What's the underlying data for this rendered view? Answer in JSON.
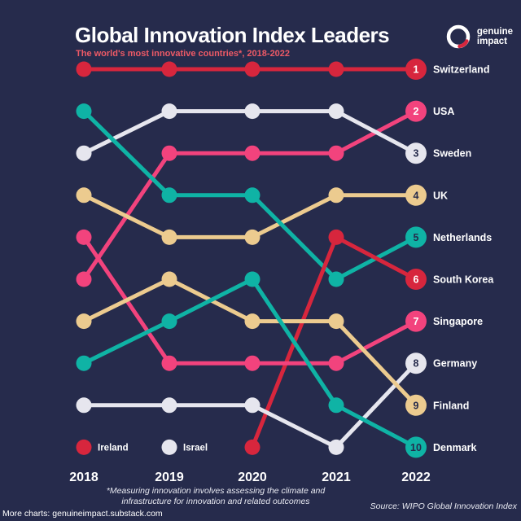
{
  "chart_data": {
    "type": "line",
    "subtype": "bump-rank-chart",
    "title": "Global Innovation Index Leaders",
    "subtitle": "The world's most innovative countries*, 2018-2022",
    "x_labels": [
      "2018",
      "2019",
      "2020",
      "2021",
      "2022"
    ],
    "y_meaning": "rank, 1 = most innovative, top to bottom; final 2022 rank shown in numbered badge",
    "ylim": [
      1,
      10
    ],
    "grid": false,
    "legend_position": "inline at first data point (Ireland 2018, Israel 2019)",
    "series": [
      {
        "name": "Switzerland",
        "color": "#d7263d",
        "badge_text": "#ffffff",
        "ranks": [
          1,
          1,
          1,
          1,
          1
        ]
      },
      {
        "name": "USA",
        "color": "#f2437d",
        "badge_text": "#ffffff",
        "ranks": [
          6,
          3,
          3,
          3,
          2
        ]
      },
      {
        "name": "Sweden",
        "color": "#e6e6ee",
        "badge_text": "#262b4c",
        "ranks": [
          3,
          2,
          2,
          2,
          3
        ]
      },
      {
        "name": "UK",
        "color": "#eccb8f",
        "badge_text": "#262b4c",
        "ranks": [
          4,
          5,
          5,
          4,
          4
        ]
      },
      {
        "name": "Netherlands",
        "color": "#0fb3a5",
        "badge_text": "#262b4c",
        "ranks": [
          2,
          4,
          4,
          6,
          5
        ]
      },
      {
        "name": "South Korea",
        "color": "#d7263d",
        "badge_text": "#ffffff",
        "ranks": [
          null,
          null,
          10,
          5,
          6
        ]
      },
      {
        "name": "Singapore",
        "color": "#f2437d",
        "badge_text": "#ffffff",
        "ranks": [
          5,
          8,
          8,
          8,
          7
        ]
      },
      {
        "name": "Germany",
        "color": "#e6e6ee",
        "badge_text": "#262b4c",
        "ranks": [
          9,
          9,
          9,
          10,
          8
        ]
      },
      {
        "name": "Finland",
        "color": "#eccb8f",
        "badge_text": "#262b4c",
        "ranks": [
          7,
          6,
          7,
          7,
          9
        ]
      },
      {
        "name": "Denmark",
        "color": "#0fb3a5",
        "badge_text": "#262b4c",
        "ranks": [
          8,
          7,
          6,
          9,
          10
        ]
      },
      {
        "name": "Ireland",
        "color": "#d7263d",
        "badge_text": "#ffffff",
        "ranks": [
          10,
          null,
          null,
          null,
          null
        ],
        "label_inline": true
      },
      {
        "name": "Israel",
        "color": "#e6e6ee",
        "badge_text": "#262b4c",
        "ranks": [
          null,
          10,
          null,
          null,
          null
        ],
        "label_inline": true
      }
    ]
  },
  "logo": {
    "line1": "genuine",
    "line2": "impact"
  },
  "footer": {
    "footnote_line1": "*Measuring innovation involves assessing the climate and",
    "footnote_line2": "infrastructure for innovation and related outcomes",
    "more_charts": "More charts: genuineimpact.substack.com",
    "source": "Source: WIPO Global Innovation Index"
  },
  "colors": {
    "background": "#262b4c",
    "subtitle_accent": "#ee5a66",
    "red": "#d7263d",
    "pink": "#f2437d",
    "white_series": "#e6e6ee",
    "tan": "#eccb8f",
    "teal": "#0fb3a5"
  }
}
